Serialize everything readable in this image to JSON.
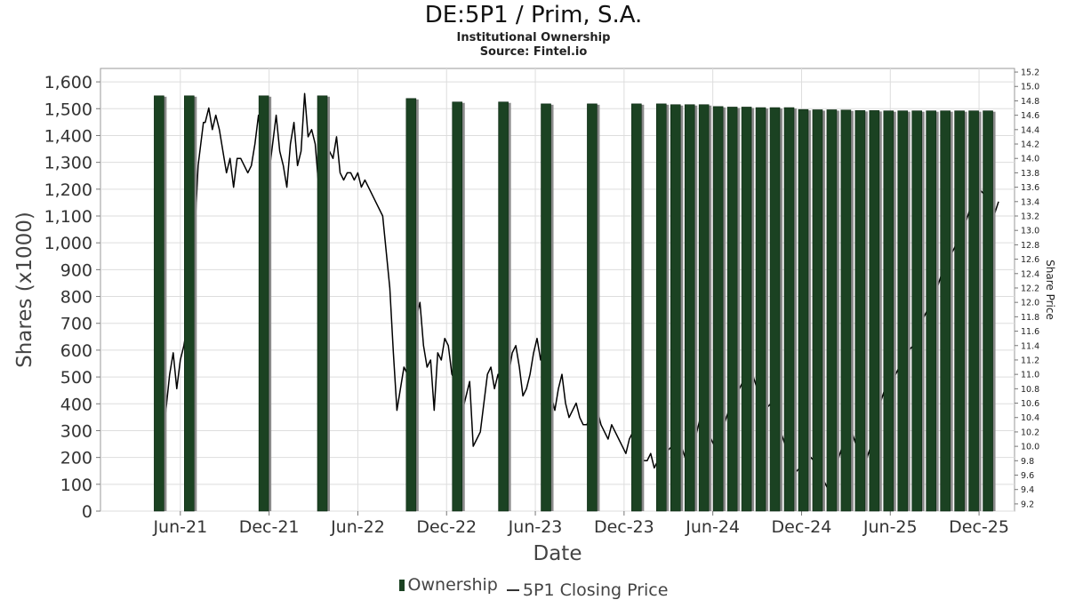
{
  "title": "DE:5P1 / Prim, S.A.",
  "subtitle": "Institutional Ownership",
  "source": "Source: Fintel.io",
  "colors": {
    "bar": "#1b4222",
    "bar_shadow": "#8a8a8a",
    "line": "#000000",
    "grid": "#dddddd",
    "axis_text": "#333333"
  },
  "legend": {
    "ownership": "Ownership",
    "price": "5P1 Closing Price"
  },
  "chart_data": {
    "type": "bar+line",
    "xlabel": "Date",
    "ylabel": "Shares (x1000)",
    "y2label": "Share Price",
    "ylim": [
      0,
      1650
    ],
    "y2lim": [
      9.1,
      15.25
    ],
    "x_ticks": [
      "Jun-21",
      "Dec-21",
      "Jun-22",
      "Dec-22",
      "Jun-23",
      "Dec-23",
      "Jun-24",
      "Dec-24",
      "Jun-25",
      "Dec-25"
    ],
    "y_ticks": [
      "0",
      "100",
      "200",
      "300",
      "400",
      "500",
      "600",
      "700",
      "800",
      "900",
      "1,000",
      "1,100",
      "1,200",
      "1,300",
      "1,400",
      "1,500",
      "1,600"
    ],
    "y2_ticks": [
      "9.2",
      "9.4",
      "9.6",
      "9.8",
      "10.0",
      "10.2",
      "10.4",
      "10.6",
      "10.8",
      "11.0",
      "11.2",
      "11.4",
      "11.6",
      "11.8",
      "12.0",
      "12.2",
      "12.4",
      "12.6",
      "12.8",
      "13.0",
      "13.2",
      "13.4",
      "13.6",
      "13.8",
      "14.0",
      "14.2",
      "14.4",
      "14.6",
      "14.8",
      "15.0",
      "15.2"
    ],
    "ownership": {
      "name": "Ownership",
      "dates": [
        2021.3,
        2021.47,
        2021.89,
        2022.22,
        2022.72,
        2022.98,
        2023.24,
        2023.48,
        2023.74,
        2023.99,
        2024.13,
        2024.21,
        2024.29,
        2024.37,
        2024.45,
        2024.53,
        2024.61,
        2024.69,
        2024.77,
        2024.85,
        2024.93,
        2025.01,
        2025.09,
        2025.17,
        2025.25,
        2025.33,
        2025.41,
        2025.49,
        2025.57,
        2025.65,
        2025.73,
        2025.81,
        2025.89,
        2025.97
      ],
      "values": [
        1548,
        1548,
        1548,
        1548,
        1538,
        1525,
        1525,
        1518,
        1518,
        1518,
        1518,
        1515,
        1515,
        1515,
        1508,
        1506,
        1506,
        1504,
        1504,
        1504,
        1497,
        1496,
        1496,
        1495,
        1493,
        1493,
        1492,
        1492,
        1492,
        1492,
        1492,
        1492,
        1492,
        1492
      ]
    },
    "price": {
      "name": "5P1 Closing Price",
      "dates": [
        2021.3,
        2021.33,
        2021.36,
        2021.38,
        2021.4,
        2021.42,
        2021.44,
        2021.46,
        2021.48,
        2021.5,
        2021.52,
        2021.55,
        2021.56,
        2021.58,
        2021.6,
        2021.62,
        2021.64,
        2021.66,
        2021.68,
        2021.7,
        2021.72,
        2021.74,
        2021.76,
        2021.78,
        2021.8,
        2021.82,
        2021.84,
        2021.86,
        2021.88,
        2021.9,
        2021.92,
        2021.94,
        2021.96,
        2021.98,
        2022.0,
        2022.02,
        2022.04,
        2022.06,
        2022.08,
        2022.1,
        2022.12,
        2022.14,
        2022.16,
        2022.18,
        2022.2,
        2022.22,
        2022.24,
        2022.26,
        2022.28,
        2022.3,
        2022.32,
        2022.34,
        2022.36,
        2022.38,
        2022.4,
        2022.42,
        2022.44,
        2022.46,
        2022.48,
        2022.52,
        2022.56,
        2022.58,
        2022.6,
        2022.62,
        2022.64,
        2022.68,
        2022.7,
        2022.72,
        2022.75,
        2022.77,
        2022.79,
        2022.81,
        2022.83,
        2022.85,
        2022.87,
        2022.89,
        2022.91,
        2022.93,
        2022.95,
        2022.97,
        2022.99,
        2023.01,
        2023.03,
        2023.05,
        2023.07,
        2023.09,
        2023.11,
        2023.13,
        2023.15,
        2023.17,
        2023.19,
        2023.21,
        2023.23,
        2023.25,
        2023.27,
        2023.29,
        2023.31,
        2023.33,
        2023.35,
        2023.37,
        2023.39,
        2023.41,
        2023.43,
        2023.45,
        2023.47,
        2023.49,
        2023.51,
        2023.53,
        2023.55,
        2023.57,
        2023.59,
        2023.61,
        2023.63,
        2023.65,
        2023.67,
        2023.69,
        2023.71,
        2023.73,
        2023.75,
        2023.77,
        2023.79,
        2023.81,
        2023.83,
        2023.85,
        2023.87,
        2023.89,
        2023.91,
        2023.93,
        2023.95,
        2023.97,
        2023.99,
        2024.01,
        2024.03,
        2024.05,
        2024.07,
        2024.09,
        2024.11,
        2024.15,
        2024.19,
        2024.23,
        2024.27,
        2024.31,
        2024.35,
        2024.39,
        2024.43,
        2024.47,
        2024.51,
        2024.55,
        2024.59,
        2024.63,
        2024.67,
        2024.71,
        2024.75,
        2024.79,
        2024.83,
        2024.87,
        2024.91,
        2024.95,
        2024.99,
        2025.03,
        2025.07,
        2025.11,
        2025.15,
        2025.19,
        2025.23,
        2025.27,
        2025.31,
        2025.35,
        2025.39,
        2025.43,
        2025.47,
        2025.51,
        2025.55,
        2025.59,
        2025.63,
        2025.67,
        2025.71,
        2025.75,
        2025.79,
        2025.83,
        2025.87,
        2025.91,
        2025.95,
        2025.99,
        2026.03
      ],
      "values": [
        9.8,
        10.3,
        11.0,
        11.3,
        10.8,
        11.2,
        11.4,
        11.7,
        12.5,
        12.9,
        13.9,
        14.5,
        14.5,
        14.7,
        14.4,
        14.6,
        14.4,
        14.1,
        13.8,
        14.0,
        13.6,
        14.0,
        14.0,
        13.9,
        13.8,
        13.9,
        14.2,
        14.6,
        14.2,
        14.6,
        13.8,
        14.2,
        14.6,
        14.1,
        13.9,
        13.6,
        14.2,
        14.5,
        13.9,
        14.1,
        14.9,
        14.3,
        14.4,
        14.2,
        13.6,
        14.0,
        14.0,
        14.1,
        14.0,
        14.3,
        13.8,
        13.7,
        13.8,
        13.8,
        13.7,
        13.8,
        13.6,
        13.7,
        13.6,
        13.4,
        13.2,
        12.7,
        12.2,
        11.3,
        10.5,
        11.1,
        11.0,
        11.9,
        11.8,
        12.0,
        11.4,
        11.1,
        11.2,
        10.5,
        11.3,
        11.2,
        11.5,
        11.4,
        11.0,
        10.9,
        10.7,
        10.5,
        10.7,
        10.9,
        10.0,
        10.1,
        10.2,
        10.6,
        11.0,
        11.1,
        10.8,
        11.0,
        10.8,
        10.7,
        11.0,
        11.3,
        11.4,
        11.1,
        10.7,
        10.8,
        11.0,
        11.3,
        11.5,
        11.2,
        11.5,
        10.9,
        10.7,
        10.5,
        10.8,
        11.0,
        10.6,
        10.4,
        10.5,
        10.6,
        10.4,
        10.3,
        10.3,
        10.4,
        10.3,
        10.5,
        10.3,
        10.2,
        10.1,
        10.3,
        10.2,
        10.1,
        10.0,
        9.9,
        10.1,
        10.2,
        10.1,
        10.0,
        9.8,
        9.8,
        9.9,
        9.7,
        9.8,
        9.9,
        10.0,
        10.1,
        9.8,
        10.0,
        10.4,
        10.2,
        10.0,
        10.2,
        10.5,
        10.7,
        10.9,
        11.1,
        10.8,
        10.5,
        10.6,
        10.3,
        10.0,
        9.6,
        9.7,
        9.9,
        9.8,
        9.6,
        9.4,
        9.7,
        10.0,
        10.3,
        10.0,
        9.7,
        10.0,
        10.5,
        10.8,
        10.9,
        11.1,
        11.3,
        11.4,
        11.7,
        11.9,
        12.1,
        12.4,
        12.6,
        12.8,
        13.0,
        13.3,
        13.6,
        13.5,
        13.1,
        13.4
      ]
    }
  }
}
